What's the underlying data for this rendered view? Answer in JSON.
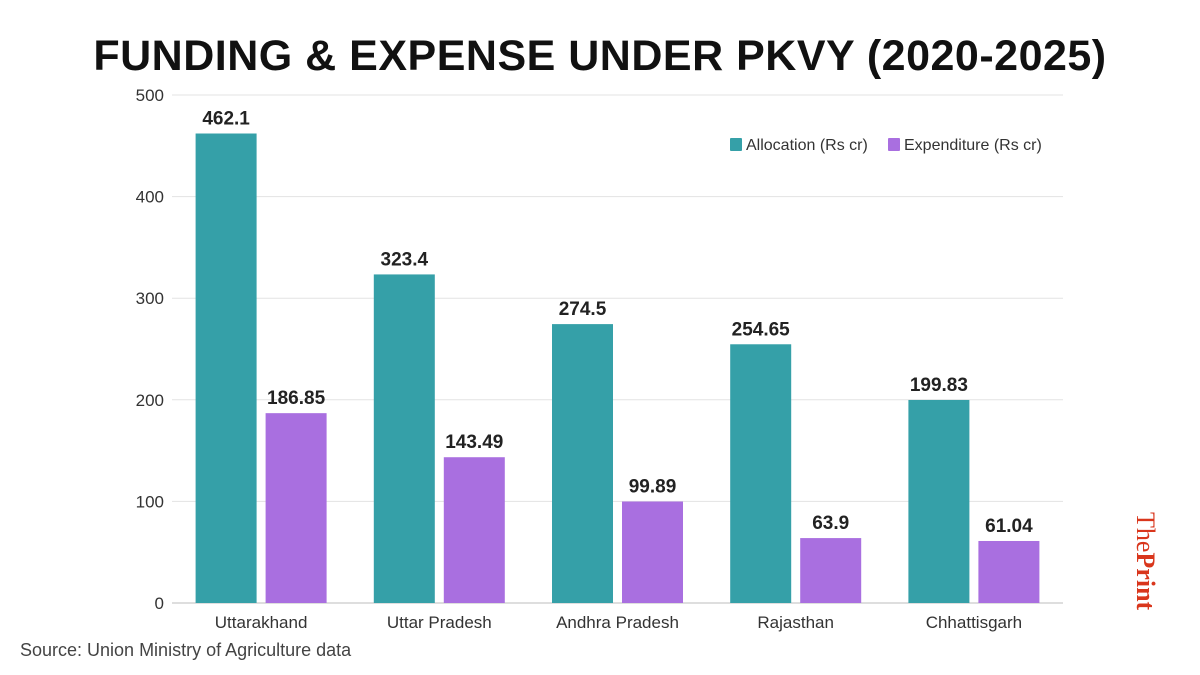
{
  "chart_data": {
    "type": "bar",
    "title": "FUNDING & EXPENSE UNDER PKVY (2020-2025)",
    "categories": [
      "Uttarakhand",
      "Uttar Pradesh",
      "Andhra Pradesh",
      "Rajasthan",
      "Chhattisgarh"
    ],
    "series": [
      {
        "name": "Allocation (Rs cr)",
        "values": [
          462.1,
          323.4,
          274.5,
          254.65,
          199.83
        ],
        "color": "#35a0a8",
        "value_labels": [
          "462.1",
          "323.4",
          "274.5",
          "254.65",
          "199.83"
        ]
      },
      {
        "name": "Expenditure (Rs cr)",
        "values": [
          186.85,
          143.49,
          99.89,
          63.9,
          61.04
        ],
        "color": "#a96fe0",
        "value_labels": [
          "186.85",
          "143.49",
          "99.89",
          "63.9",
          "61.04"
        ]
      }
    ],
    "ylim": [
      0,
      500
    ],
    "yticks": [
      0,
      100,
      200,
      300,
      400,
      500
    ],
    "grid": true,
    "legend": "top-right"
  },
  "source": "Source: Union Ministry of Agriculture data",
  "logo": {
    "the": "The",
    "print": "Print",
    "color": "#d9361c"
  }
}
